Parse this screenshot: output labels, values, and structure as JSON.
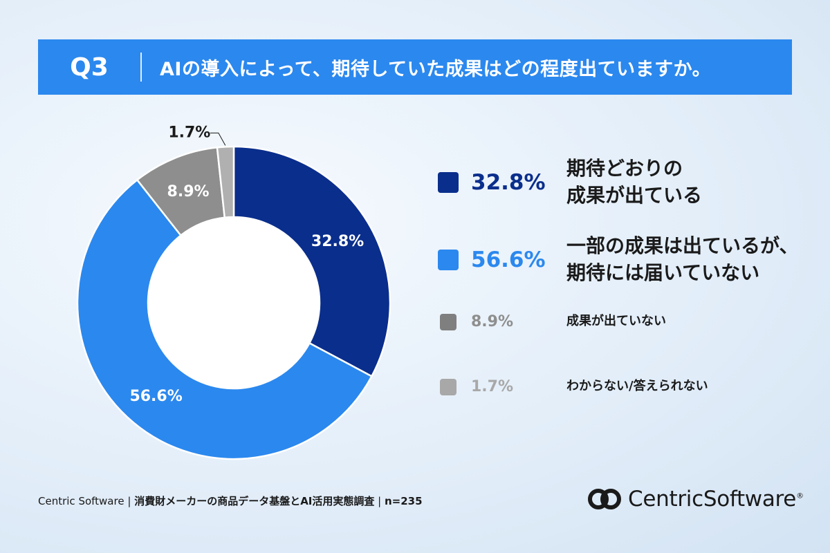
{
  "header": {
    "question_label": "Q3",
    "question_text": "AIの導入によって、期待していた成果はどの程度出ていますか。"
  },
  "chart_data": {
    "type": "pie",
    "donut": true,
    "title": "",
    "categories": [
      "期待どおりの成果が出ている",
      "一部の成果は出ているが、期待には届いていない",
      "成果が出ていない",
      "わからない/答えられない"
    ],
    "values": [
      32.8,
      56.6,
      8.9,
      1.7
    ],
    "labels": [
      "32.8%",
      "56.6%",
      "8.9%",
      "1.7%"
    ],
    "colors": [
      "#0a2e8c",
      "#2b88ee",
      "#8e8e8e",
      "#b0b0b0"
    ],
    "legend_position": "right"
  },
  "legend": {
    "items": [
      {
        "pct": "32.8%",
        "line1": "期待どおりの",
        "line2": "成果が出ている",
        "color": "#0a2e8c",
        "pct_color": "#0a2e8c"
      },
      {
        "pct": "56.6%",
        "line1": "一部の成果は出ているが、",
        "line2": "期待には届いていない",
        "color": "#2b88ee",
        "pct_color": "#2b88ee"
      },
      {
        "pct": "8.9%",
        "line1": "成果が出ていない",
        "color": "#7f7f7f",
        "pct_color": "#8e8e8e"
      },
      {
        "pct": "1.7%",
        "line1": "わからない/答えられない",
        "color": "#a8a8a8",
        "pct_color": "#a8a8a8"
      }
    ]
  },
  "footer": {
    "company": "Centric Software",
    "survey": "消費財メーカーの商品データ基盤とAI活用実態調査",
    "sample": "n=235"
  },
  "logo": {
    "word1": "Centric",
    "word2": "Software",
    "mark": "®"
  }
}
